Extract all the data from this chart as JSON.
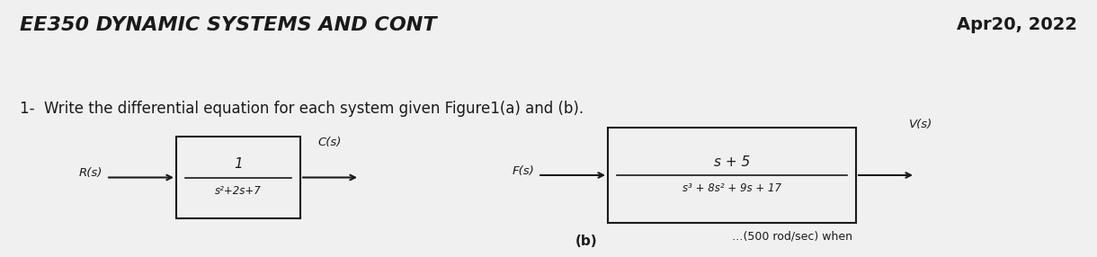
{
  "bg_color": "#f0f0f0",
  "title_text": "EE350 DYNAMIC SYSTEMS AND CONT",
  "date_text": "Apr20, 2022",
  "question_text": "1-  Write the differential equation for each system given Figure1(a) and (b).",
  "title_fontsize": 16,
  "date_fontsize": 14,
  "question_fontsize": 12,
  "block_a_numerator": "1",
  "block_a_denominator": "s²+2s+7",
  "block_a_input": "R(s)",
  "block_a_output": "C(s)",
  "block_b_numerator": "s + 5",
  "block_b_denominator": "s³ + 8s² + 9s + 17",
  "block_b_input": "F(s)",
  "block_b_output": "V(s)",
  "label_b": "(b)",
  "bottom_text": "               …(500 rod/sec) when",
  "text_color": "#1a1a1a",
  "box_color": "#1a1a1a",
  "arrow_color": "#1a1a1a"
}
